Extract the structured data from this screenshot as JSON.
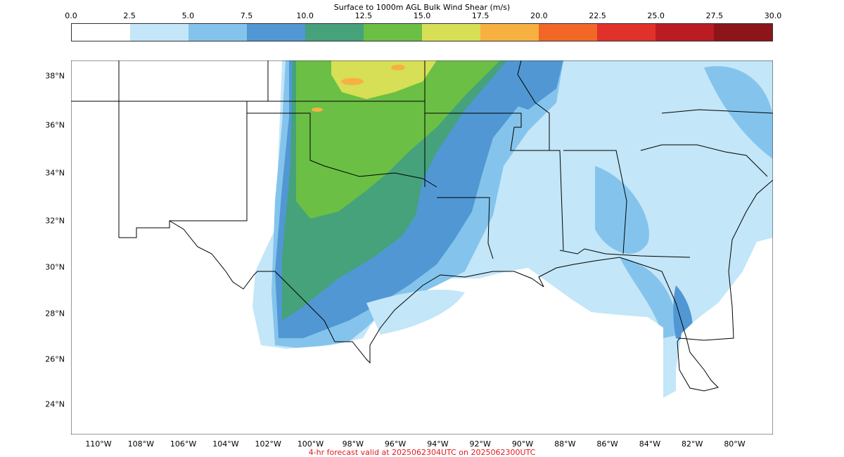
{
  "title": "Surface to 1000m AGL Bulk Wind Shear (m/s)",
  "colorbar": {
    "ticks": [
      "0.0",
      "2.5",
      "5.0",
      "7.5",
      "10.0",
      "12.5",
      "15.0",
      "17.5",
      "20.0",
      "22.5",
      "25.0",
      "27.5",
      "30.0"
    ],
    "colors": [
      "#ffffff",
      "#c3e6f8",
      "#84c4ec",
      "#5197d3",
      "#45a27a",
      "#6bbf45",
      "#d6df55",
      "#f7b042",
      "#f26726",
      "#e0312a",
      "#bb1b23",
      "#8d1519"
    ]
  },
  "axes": {
    "lat_labels": [
      "38°N",
      "36°N",
      "34°N",
      "32°N",
      "30°N",
      "28°N",
      "26°N",
      "24°N"
    ],
    "lon_labels": [
      "110°W",
      "108°W",
      "106°W",
      "104°W",
      "102°W",
      "100°W",
      "98°W",
      "96°W",
      "94°W",
      "92°W",
      "90°W",
      "88°W",
      "86°W",
      "84°W",
      "82°W",
      "80°W"
    ]
  },
  "footer": "4-hr forecast valid at 2025062304UTC on 2025062300UTC"
}
